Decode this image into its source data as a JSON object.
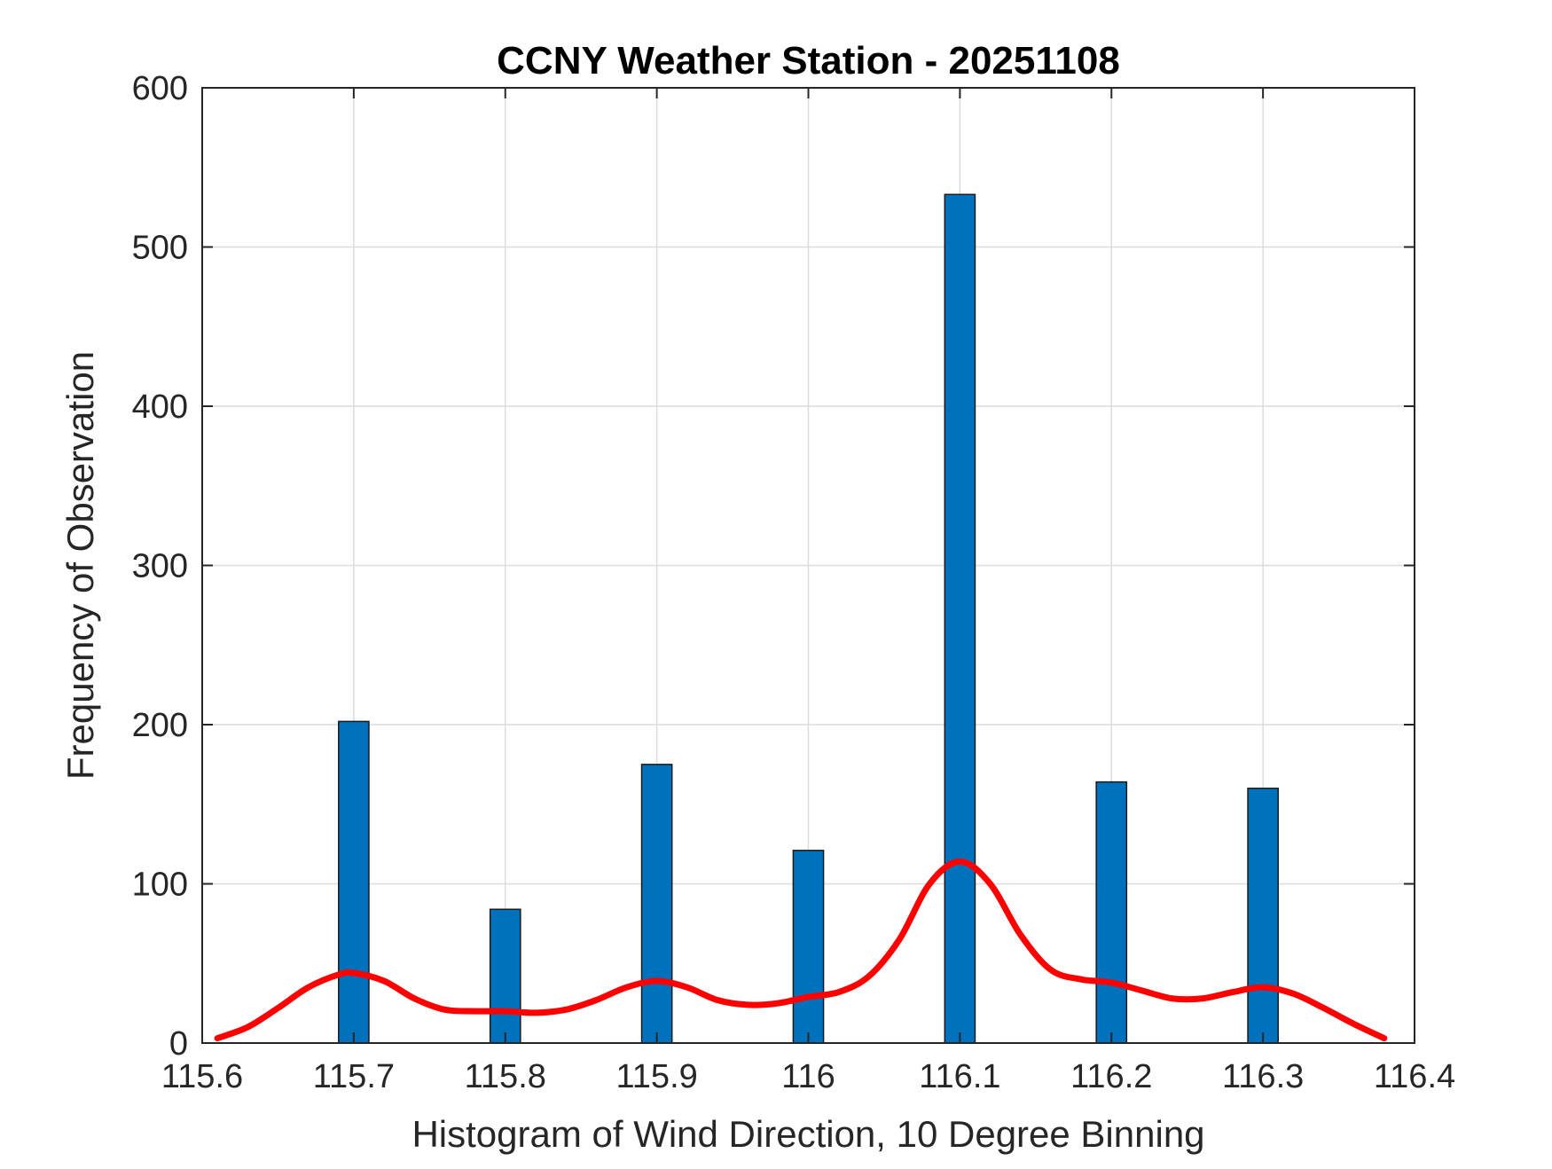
{
  "chart_data": {
    "type": "bar",
    "title": "CCNY Weather Station - 20251108",
    "xlabel": "Histogram of Wind Direction, 10 Degree Binning",
    "ylabel": "Frequency of Observation",
    "xlim": [
      115.6,
      116.4
    ],
    "ylim": [
      0,
      600
    ],
    "xticks": [
      115.6,
      115.7,
      115.8,
      115.9,
      116.0,
      116.1,
      116.2,
      116.3,
      116.4
    ],
    "xtick_labels": [
      "115.6",
      "115.7",
      "115.8",
      "115.9",
      "116",
      "116.1",
      "116.2",
      "116.3",
      "116.4"
    ],
    "yticks": [
      0,
      100,
      200,
      300,
      400,
      500,
      600
    ],
    "ytick_labels": [
      "0",
      "100",
      "200",
      "300",
      "400",
      "500",
      "600"
    ],
    "grid": true,
    "bars": {
      "color": "#0072BD",
      "width": 0.02,
      "x": [
        115.7,
        115.8,
        115.9,
        116.0,
        116.1,
        116.2,
        116.3
      ],
      "values": [
        202,
        84,
        175,
        121,
        533,
        164,
        160
      ]
    },
    "curve": {
      "color": "#FF0000",
      "x": [
        115.61,
        115.63,
        115.65,
        115.67,
        115.69,
        115.7,
        115.72,
        115.74,
        115.76,
        115.78,
        115.8,
        115.82,
        115.84,
        115.86,
        115.88,
        115.9,
        115.92,
        115.94,
        115.96,
        115.98,
        116.0,
        116.02,
        116.04,
        116.06,
        116.08,
        116.1,
        116.12,
        116.14,
        116.16,
        116.18,
        116.2,
        116.22,
        116.24,
        116.26,
        116.28,
        116.3,
        116.32,
        116.34,
        116.36,
        116.38
      ],
      "values": [
        3,
        10,
        22,
        35,
        43,
        44,
        39,
        28,
        21,
        20,
        20,
        19,
        21,
        27,
        35,
        39,
        35,
        27,
        24,
        25,
        29,
        32,
        42,
        65,
        100,
        114,
        100,
        68,
        46,
        40,
        38,
        33,
        28,
        28,
        32,
        35,
        31,
        22,
        12,
        3
      ]
    }
  }
}
